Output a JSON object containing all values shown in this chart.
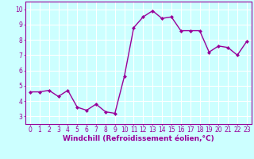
{
  "x": [
    0,
    1,
    2,
    3,
    4,
    5,
    6,
    7,
    8,
    9,
    10,
    11,
    12,
    13,
    14,
    15,
    16,
    17,
    18,
    19,
    20,
    21,
    22,
    23
  ],
  "y": [
    4.6,
    4.6,
    4.7,
    4.3,
    4.7,
    3.6,
    3.4,
    3.8,
    3.3,
    3.2,
    5.6,
    8.8,
    9.5,
    9.9,
    9.4,
    9.5,
    8.6,
    8.6,
    8.6,
    7.2,
    7.6,
    7.5,
    7.0,
    7.9
  ],
  "line_color": "#990099",
  "marker": "D",
  "marker_size": 2.0,
  "bg_color": "#ccffff",
  "grid_color": "#aadddd",
  "xlabel": "Windchill (Refroidissement éolien,°C)",
  "xlim": [
    -0.5,
    23.5
  ],
  "ylim": [
    2.5,
    10.5
  ],
  "yticks": [
    3,
    4,
    5,
    6,
    7,
    8,
    9,
    10
  ],
  "xticks": [
    0,
    1,
    2,
    3,
    4,
    5,
    6,
    7,
    8,
    9,
    10,
    11,
    12,
    13,
    14,
    15,
    16,
    17,
    18,
    19,
    20,
    21,
    22,
    23
  ],
  "tick_label_fontsize": 5.5,
  "xlabel_fontsize": 6.5,
  "line_width": 1.0
}
